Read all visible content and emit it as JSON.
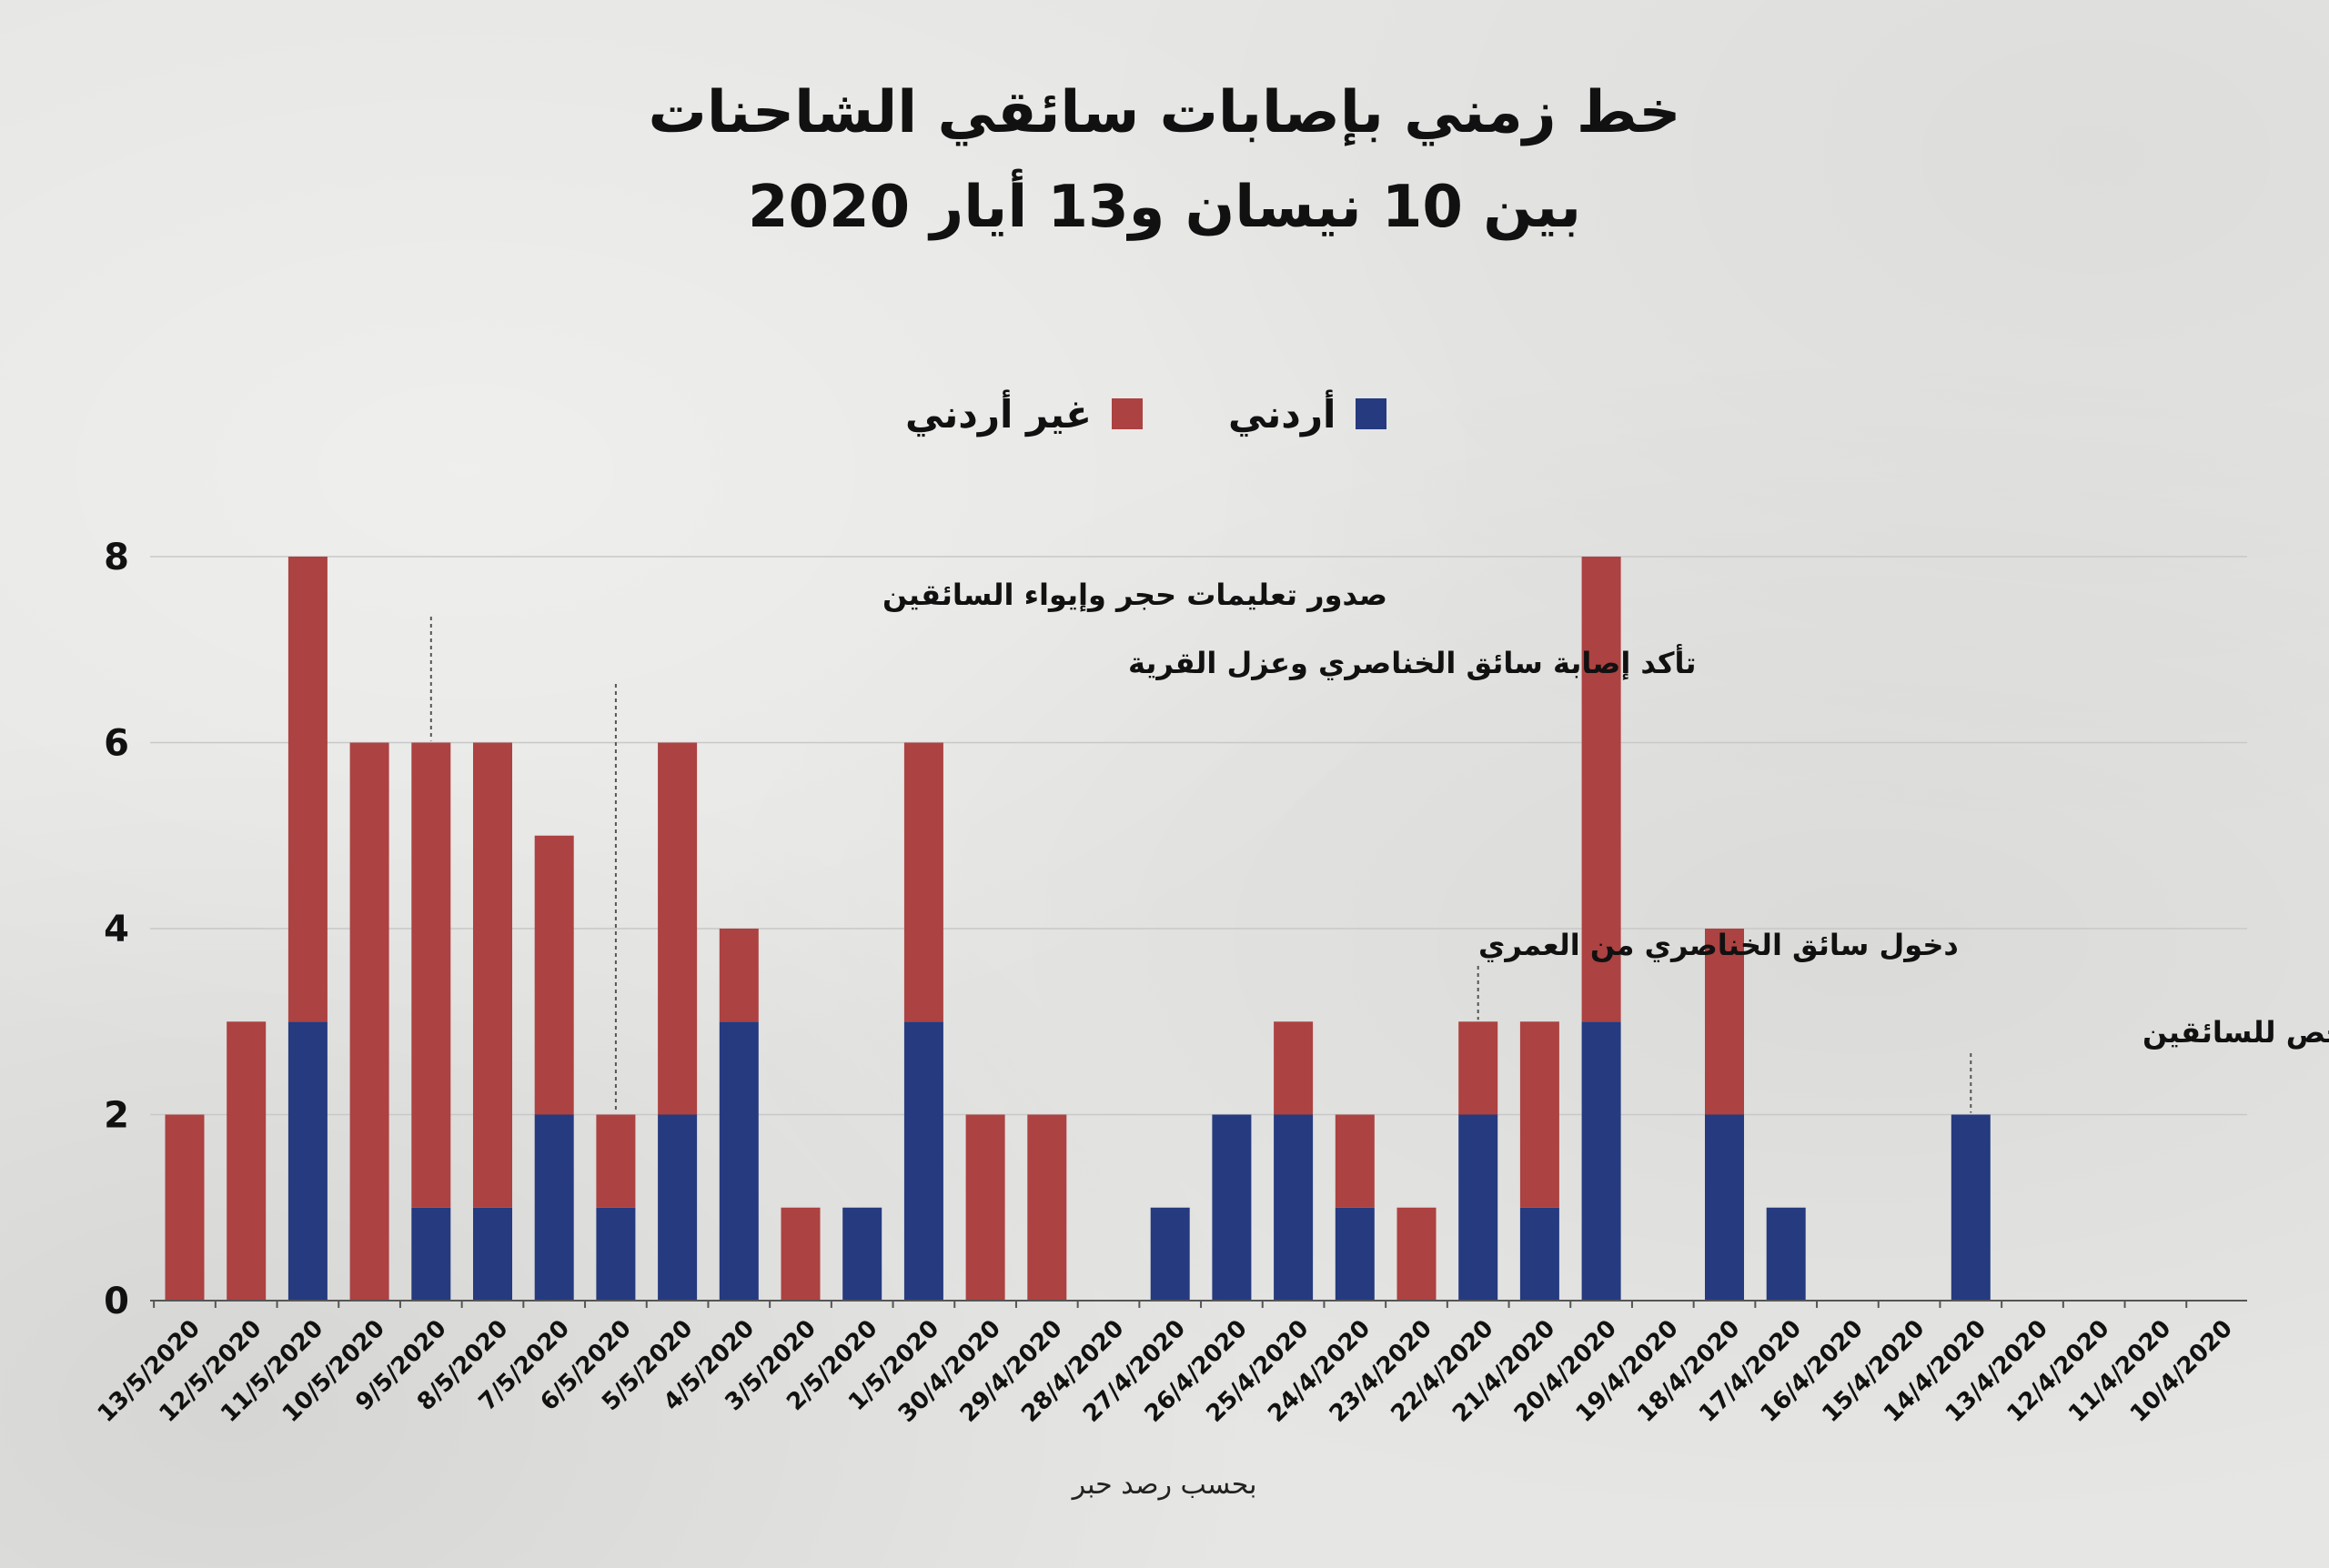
{
  "title": {
    "line1": "خط زمني بإصابات سائقي الشاحنات",
    "line2": "بين 10 نيسان و13 أيار 2020"
  },
  "legend": {
    "jordanian": "أردني",
    "non_jordanian": "غير أردني"
  },
  "colors": {
    "jordanian": "#253a7f",
    "non_jordanian": "#ac4241",
    "grid": "#c8c8c8",
    "axis": "#555555"
  },
  "source": "بحسب رصد حبر",
  "chart_data": {
    "type": "bar",
    "stacked": true,
    "categories": [
      "13/5/2020",
      "12/5/2020",
      "11/5/2020",
      "10/5/2020",
      "9/5/2020",
      "8/5/2020",
      "7/5/2020",
      "6/5/2020",
      "5/5/2020",
      "4/5/2020",
      "3/5/2020",
      "2/5/2020",
      "1/5/2020",
      "30/4/2020",
      "29/4/2020",
      "28/4/2020",
      "27/4/2020",
      "26/4/2020",
      "25/4/2020",
      "24/4/2020",
      "23/4/2020",
      "22/4/2020",
      "21/4/2020",
      "20/4/2020",
      "19/4/2020",
      "18/4/2020",
      "17/4/2020",
      "16/4/2020",
      "15/4/2020",
      "14/4/2020",
      "13/4/2020",
      "12/4/2020",
      "11/4/2020",
      "10/4/2020"
    ],
    "series": [
      {
        "name": "أردني",
        "values": [
          0,
          0,
          3,
          0,
          1,
          1,
          2,
          1,
          2,
          3,
          0,
          1,
          3,
          0,
          0,
          0,
          1,
          2,
          2,
          1,
          0,
          2,
          1,
          3,
          0,
          2,
          1,
          0,
          0,
          2,
          0,
          0,
          0,
          0
        ]
      },
      {
        "name": "غير أردني",
        "values": [
          2,
          3,
          5,
          6,
          5,
          5,
          3,
          1,
          4,
          1,
          1,
          0,
          3,
          2,
          2,
          0,
          0,
          0,
          1,
          1,
          1,
          1,
          2,
          5,
          0,
          2,
          0,
          0,
          0,
          0,
          0,
          0,
          0,
          0
        ]
      }
    ],
    "ylim": [
      0,
      8
    ],
    "yticks": [
      0,
      2,
      4,
      6,
      8
    ],
    "grid": true,
    "legend_position": "top-center",
    "annotations": [
      {
        "text": "صدور تعليمات حجر وإيواء السائقين",
        "category": "9/5/2020",
        "value": 6
      },
      {
        "text": "تأكد إصابة سائق الخناصري وعزل القرية",
        "category": "6/5/2020",
        "value": 2
      },
      {
        "text": "دخول سائق الخناصري من العمري",
        "category": "22/4/2020",
        "value": 3
      },
      {
        "text": "بدء اعتماد الفحص للسائقين",
        "category": "14/4/2020",
        "value": 2
      }
    ]
  }
}
